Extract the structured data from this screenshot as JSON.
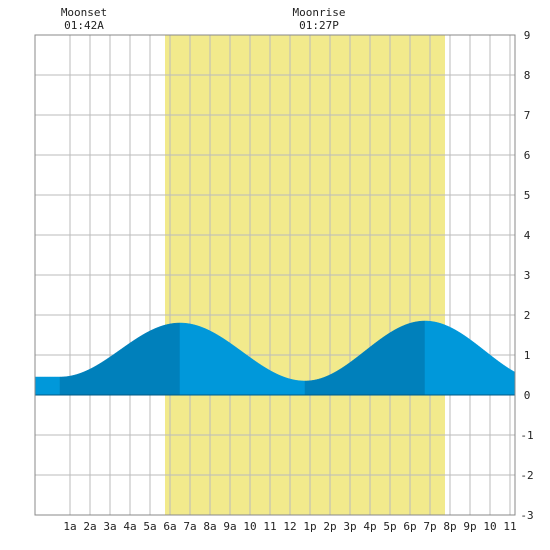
{
  "chart_data": {
    "type": "area",
    "title": "",
    "xlabel": "",
    "ylabel": "",
    "x_range_hours": [
      -0.75,
      23.25
    ],
    "ylim": [
      -3,
      9
    ],
    "grid": true,
    "x_ticks": [
      {
        "hour": 1,
        "label": "1a"
      },
      {
        "hour": 2,
        "label": "2a"
      },
      {
        "hour": 3,
        "label": "3a"
      },
      {
        "hour": 4,
        "label": "4a"
      },
      {
        "hour": 5,
        "label": "5a"
      },
      {
        "hour": 6,
        "label": "6a"
      },
      {
        "hour": 7,
        "label": "7a"
      },
      {
        "hour": 8,
        "label": "8a"
      },
      {
        "hour": 9,
        "label": "9a"
      },
      {
        "hour": 10,
        "label": "10"
      },
      {
        "hour": 11,
        "label": "11"
      },
      {
        "hour": 12,
        "label": "12"
      },
      {
        "hour": 13,
        "label": "1p"
      },
      {
        "hour": 14,
        "label": "2p"
      },
      {
        "hour": 15,
        "label": "3p"
      },
      {
        "hour": 16,
        "label": "4p"
      },
      {
        "hour": 17,
        "label": "5p"
      },
      {
        "hour": 18,
        "label": "6p"
      },
      {
        "hour": 19,
        "label": "7p"
      },
      {
        "hour": 20,
        "label": "8p"
      },
      {
        "hour": 21,
        "label": "9p"
      },
      {
        "hour": 22,
        "label": "10"
      },
      {
        "hour": 23,
        "label": "11"
      }
    ],
    "y_ticks": [
      -3,
      -2,
      -1,
      0,
      1,
      2,
      3,
      4,
      5,
      6,
      7,
      8,
      9
    ],
    "daylight_hours": [
      5.75,
      19.75
    ],
    "tide_extremes": [
      {
        "hour": 0.5,
        "height": 0.45,
        "kind": "low"
      },
      {
        "hour": 6.5,
        "height": 1.8,
        "kind": "high"
      },
      {
        "hour": 12.75,
        "height": 0.35,
        "kind": "low"
      },
      {
        "hour": 18.75,
        "height": 1.85,
        "kind": "high"
      }
    ],
    "moon_events": [
      {
        "label": "Moonset",
        "time": "01:42A",
        "hour": 1.7
      },
      {
        "label": "Moonrise",
        "time": "01:27P",
        "hour": 13.45
      }
    ],
    "colors": {
      "daylight": "#f2ea8c",
      "tide_light": "#0098da",
      "tide_dark": "#0080bb",
      "grid": "#bbbbbb",
      "frame": "#888888"
    }
  }
}
